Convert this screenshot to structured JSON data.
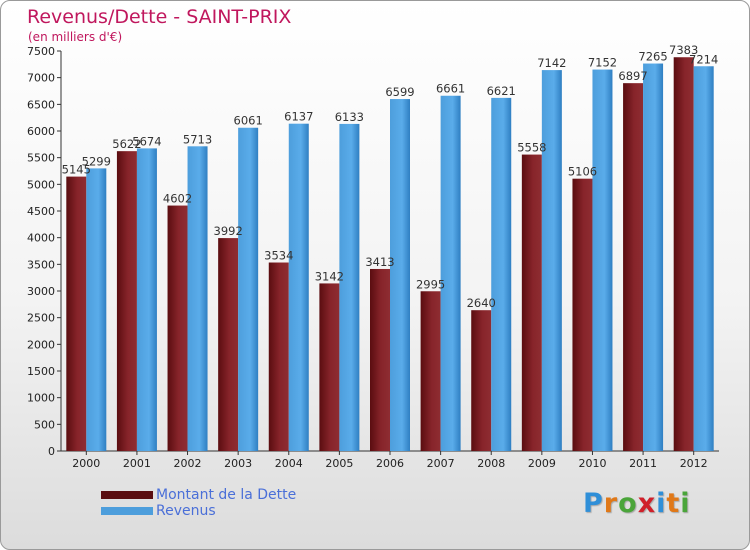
{
  "chart_data": {
    "type": "bar",
    "title": "Revenus/Dette - SAINT-PRIX",
    "subtitle": "(en milliers d'€)",
    "categories": [
      "2000",
      "2001",
      "2002",
      "2003",
      "2004",
      "2005",
      "2006",
      "2007",
      "2008",
      "2009",
      "2010",
      "2011",
      "2012"
    ],
    "series": [
      {
        "name": "Montant de la Dette",
        "color": "#7a1518",
        "values": [
          5145,
          5622,
          4602,
          3992,
          3534,
          3142,
          3413,
          2995,
          2640,
          5558,
          5106,
          6897,
          7383
        ],
        "labels": [
          "5145",
          "5622",
          "4602",
          "3992",
          "3534",
          "3142",
          "3413",
          "2995",
          "2640",
          "5558",
          "5106",
          "6897",
          "7383"
        ]
      },
      {
        "name": "Revenus",
        "color": "#55a8e4",
        "values": [
          5299,
          5674,
          5713,
          6061,
          6137,
          6133,
          6599,
          6661,
          6621,
          7142,
          7152,
          7265,
          7214
        ],
        "labels": [
          "5299",
          "5674",
          "5713",
          "6061",
          "6137",
          "6133",
          "6599",
          "6661",
          "6621",
          "7142",
          "7152",
          "7265",
          "7214"
        ]
      }
    ],
    "ylim": [
      0,
      7500
    ],
    "y_ticks": [
      0,
      500,
      1000,
      1500,
      2000,
      2500,
      3000,
      3500,
      4000,
      4500,
      5000,
      5500,
      6000,
      6500,
      7000,
      7500
    ],
    "grid": false,
    "legend_position": "bottom-left"
  },
  "logo": {
    "letters": [
      "P",
      "r",
      "o",
      "x",
      "i",
      "t",
      "i"
    ],
    "colors": [
      "#2f8fd8",
      "#e07818",
      "#4aa53a",
      "#d0202a",
      "#2f8fd8",
      "#e07818",
      "#4aa53a"
    ]
  }
}
